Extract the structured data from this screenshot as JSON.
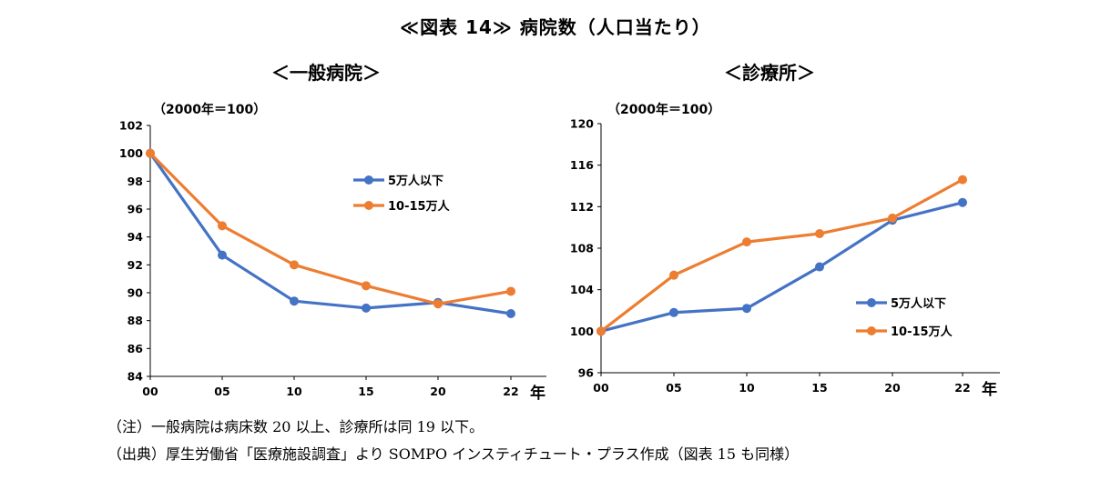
{
  "header": {
    "title": "≪図表 14≫ 病院数（人口当たり）"
  },
  "notes": {
    "note": "（注）一般病院は病床数 20 以上、診療所は同 19 以下。",
    "source": "（出典）厚生労働省「医療施設調査」より SOMPO インスティチュート・プラス作成（図表 15 も同様）"
  },
  "chart_data": [
    {
      "type": "line",
      "title": "＜一般病院＞",
      "unit_label": "（2000年＝100）",
      "x_unit_label": "年",
      "categories": [
        "00",
        "05",
        "10",
        "15",
        "20",
        "22"
      ],
      "ylim": [
        84,
        102
      ],
      "yticks": [
        "84",
        "86",
        "88",
        "90",
        "92",
        "94",
        "96",
        "98",
        "100",
        "102"
      ],
      "grid": false,
      "legend_position": "upper-right",
      "series": [
        {
          "name": "5万人以下",
          "color": "#4472C4",
          "values": [
            100,
            92.7,
            89.4,
            88.9,
            89.3,
            88.5
          ]
        },
        {
          "name": "10-15万人",
          "color": "#ED7D31",
          "values": [
            100,
            94.8,
            92.0,
            90.5,
            89.2,
            90.1
          ]
        }
      ]
    },
    {
      "type": "line",
      "title": "＜診療所＞",
      "unit_label": "（2000年＝100）",
      "x_unit_label": "年",
      "categories": [
        "00",
        "05",
        "10",
        "15",
        "20",
        "22"
      ],
      "ylim": [
        96,
        120
      ],
      "yticks": [
        "96",
        "100",
        "104",
        "108",
        "112",
        "116",
        "120"
      ],
      "grid": false,
      "legend_position": "lower-right",
      "series": [
        {
          "name": "5万人以下",
          "color": "#4472C4",
          "values": [
            100,
            101.8,
            102.2,
            106.2,
            110.7,
            112.4
          ]
        },
        {
          "name": "10-15万人",
          "color": "#ED7D31",
          "values": [
            100,
            105.4,
            108.6,
            109.4,
            110.9,
            114.6
          ]
        }
      ]
    }
  ]
}
